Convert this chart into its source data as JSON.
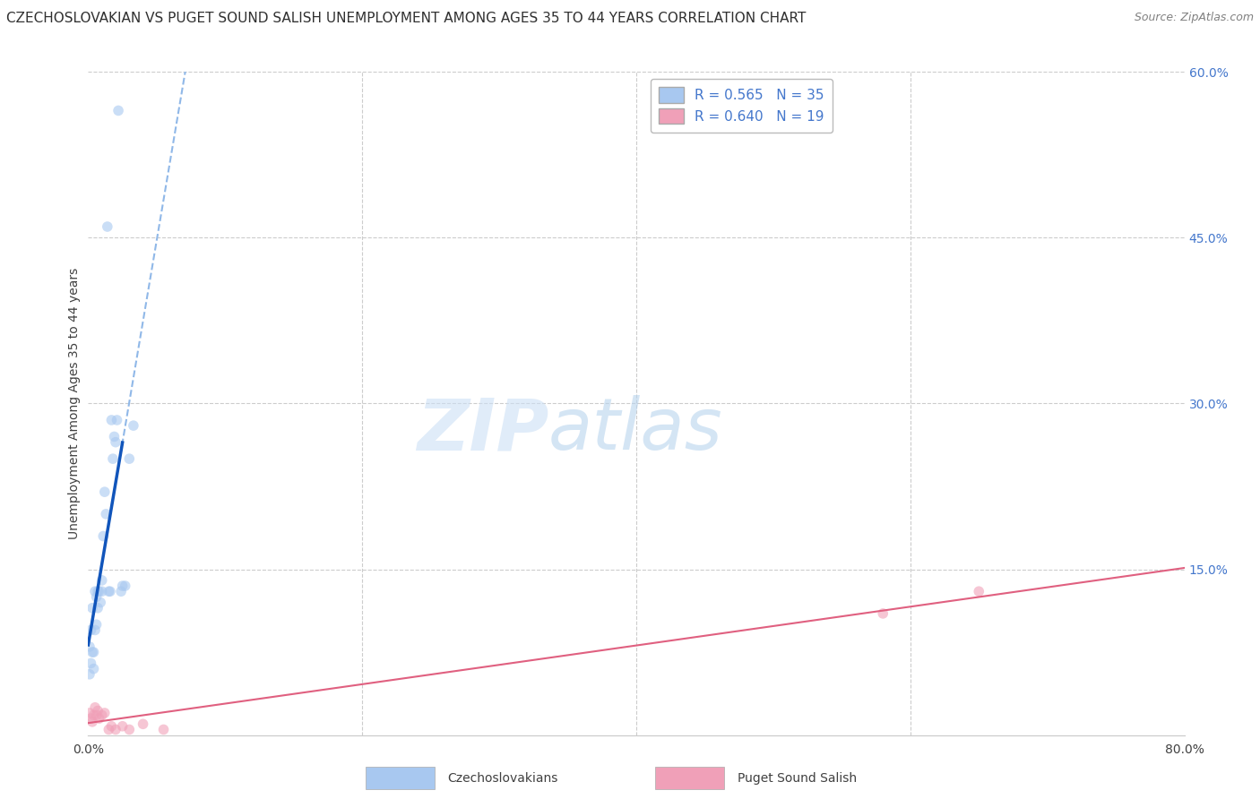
{
  "title": "CZECHOSLOVAKIAN VS PUGET SOUND SALISH UNEMPLOYMENT AMONG AGES 35 TO 44 YEARS CORRELATION CHART",
  "source": "Source: ZipAtlas.com",
  "ylabel": "Unemployment Among Ages 35 to 44 years",
  "xlim": [
    0.0,
    0.8
  ],
  "ylim": [
    0.0,
    0.6
  ],
  "xticks": [
    0.0,
    0.2,
    0.4,
    0.6,
    0.8
  ],
  "xticklabels": [
    "0.0%",
    "",
    "",
    "",
    "80.0%"
  ],
  "yticks_right": [
    0.0,
    0.15,
    0.3,
    0.45,
    0.6
  ],
  "ytick_labels_right": [
    "",
    "15.0%",
    "30.0%",
    "45.0%",
    "60.0%"
  ],
  "background_color": "#ffffff",
  "grid_color": "#cccccc",
  "legend_entries": [
    {
      "label": "Czechoslovakians",
      "color": "#a8c8f0",
      "R": "0.565",
      "N": "35"
    },
    {
      "label": "Puget Sound Salish",
      "color": "#f0a0b8",
      "R": "0.640",
      "N": "19"
    }
  ],
  "blue_scatter_x": [
    0.001,
    0.001,
    0.002,
    0.002,
    0.003,
    0.003,
    0.004,
    0.004,
    0.005,
    0.005,
    0.006,
    0.006,
    0.007,
    0.007,
    0.008,
    0.009,
    0.01,
    0.01,
    0.011,
    0.012,
    0.013,
    0.014,
    0.015,
    0.016,
    0.017,
    0.018,
    0.019,
    0.02,
    0.021,
    0.022,
    0.024,
    0.025,
    0.027,
    0.03,
    0.033
  ],
  "blue_scatter_y": [
    0.055,
    0.08,
    0.065,
    0.095,
    0.075,
    0.115,
    0.06,
    0.075,
    0.095,
    0.13,
    0.1,
    0.125,
    0.115,
    0.13,
    0.13,
    0.12,
    0.13,
    0.14,
    0.18,
    0.22,
    0.2,
    0.46,
    0.13,
    0.13,
    0.285,
    0.25,
    0.27,
    0.265,
    0.285,
    0.565,
    0.13,
    0.135,
    0.135,
    0.25,
    0.28
  ],
  "pink_scatter_x": [
    0.001,
    0.002,
    0.003,
    0.004,
    0.005,
    0.006,
    0.007,
    0.008,
    0.01,
    0.012,
    0.015,
    0.017,
    0.02,
    0.025,
    0.03,
    0.04,
    0.055,
    0.58,
    0.65
  ],
  "pink_scatter_y": [
    0.02,
    0.015,
    0.012,
    0.018,
    0.025,
    0.018,
    0.022,
    0.015,
    0.018,
    0.02,
    0.005,
    0.008,
    0.005,
    0.008,
    0.005,
    0.01,
    0.005,
    0.11,
    0.13
  ],
  "blue_line_color": "#1155bb",
  "blue_dash_color": "#90b8e8",
  "pink_line_color": "#e06080",
  "title_color": "#303030",
  "source_color": "#808080",
  "right_axis_color": "#4477cc",
  "scatter_alpha": 0.6,
  "scatter_size": 70,
  "title_fontsize": 11,
  "axis_label_fontsize": 10,
  "tick_fontsize": 10,
  "legend_fontsize": 11,
  "watermark_color": "#cce0f5",
  "watermark_alpha": 0.6
}
